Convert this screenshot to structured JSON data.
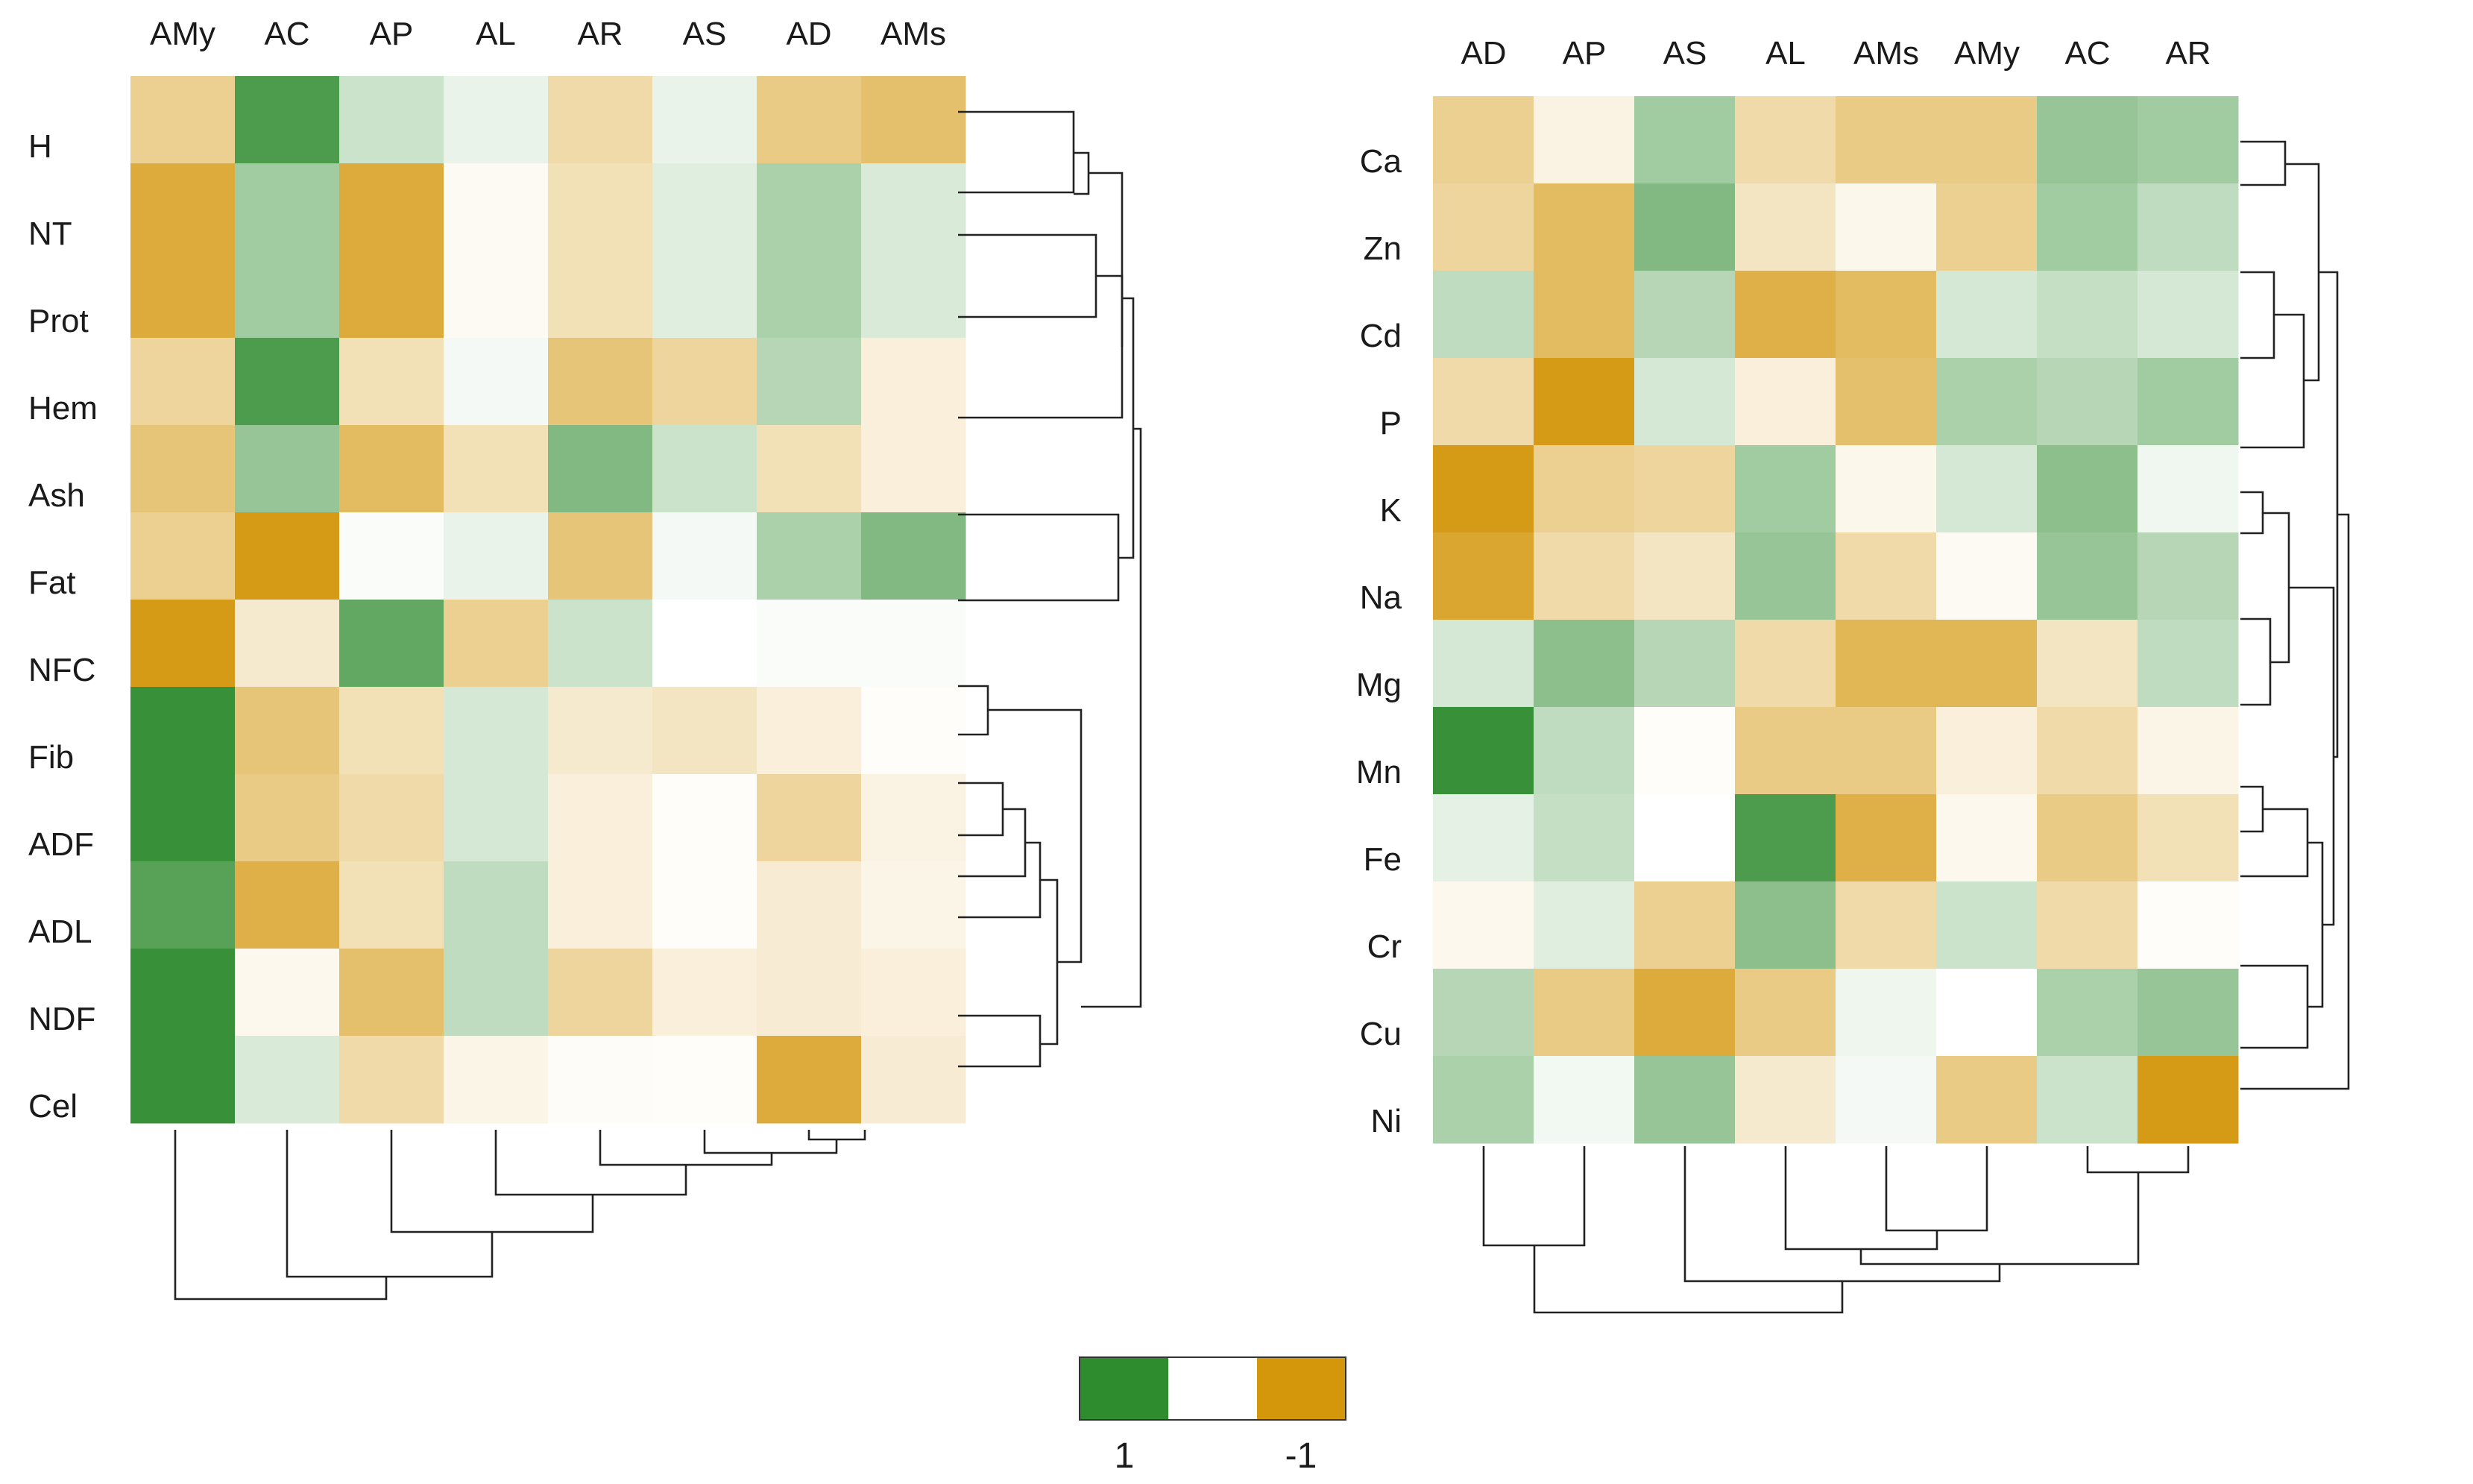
{
  "colors": {
    "positive": "#2e8b2e",
    "neutral": "#ffffff",
    "negative": "#d4960a",
    "line": "#222222",
    "text": "#1a1a1a"
  },
  "chart_data": [
    {
      "type": "heatmap",
      "title": "",
      "columns": [
        "AMy",
        "AC",
        "AP",
        "AL",
        "AR",
        "AS",
        "AD",
        "AMs"
      ],
      "rows": [
        "H",
        "NT",
        "Prot",
        "Hem",
        "Ash",
        "Fat",
        "NFC",
        "Fib",
        "ADF",
        "ADL",
        "NDF",
        "Cel"
      ],
      "value_range": [
        -1,
        1
      ],
      "values": [
        [
          -0.45,
          0.85,
          0.25,
          0.1,
          -0.35,
          0.1,
          -0.5,
          -0.6
        ],
        [
          -0.8,
          0.45,
          -0.8,
          -0.05,
          -0.3,
          0.15,
          0.4,
          0.18
        ],
        [
          -0.8,
          0.45,
          -0.8,
          -0.05,
          -0.3,
          0.15,
          0.4,
          0.18
        ],
        [
          -0.4,
          0.85,
          -0.3,
          0.05,
          -0.55,
          -0.4,
          0.35,
          -0.15
        ],
        [
          -0.55,
          0.5,
          -0.65,
          -0.3,
          0.6,
          0.25,
          -0.3,
          -0.15
        ],
        [
          -0.45,
          -0.95,
          0.03,
          0.1,
          -0.55,
          0.05,
          0.4,
          0.6
        ],
        [
          -0.95,
          -0.2,
          0.75,
          -0.45,
          0.25,
          0.0,
          0.03,
          0.03
        ],
        [
          0.95,
          -0.55,
          -0.3,
          0.2,
          -0.2,
          -0.25,
          -0.15,
          -0.02
        ],
        [
          0.95,
          -0.5,
          -0.35,
          0.2,
          -0.15,
          -0.02,
          -0.4,
          -0.12
        ],
        [
          0.8,
          -0.75,
          -0.3,
          0.3,
          -0.15,
          -0.02,
          -0.18,
          -0.1
        ],
        [
          0.95,
          -0.07,
          -0.6,
          0.3,
          -0.4,
          -0.15,
          -0.18,
          -0.15
        ],
        [
          0.95,
          0.18,
          -0.35,
          -0.1,
          -0.03,
          -0.02,
          -0.8,
          -0.18
        ]
      ]
    },
    {
      "type": "heatmap",
      "title": "",
      "columns": [
        "AD",
        "AP",
        "AS",
        "AL",
        "AMs",
        "AMy",
        "AC",
        "AR"
      ],
      "rows": [
        "Ca",
        "Zn",
        "Cd",
        "P",
        "K",
        "Na",
        "Mg",
        "Mn",
        "Fe",
        "Cr",
        "Cu",
        "Ni"
      ],
      "value_range": [
        -1,
        1
      ],
      "values": [
        [
          -0.45,
          -0.12,
          0.45,
          -0.35,
          -0.5,
          -0.5,
          0.5,
          0.45
        ],
        [
          -0.4,
          -0.65,
          0.6,
          -0.25,
          -0.08,
          -0.45,
          0.45,
          0.3
        ],
        [
          0.3,
          -0.65,
          0.35,
          -0.75,
          -0.65,
          0.2,
          0.28,
          0.2
        ],
        [
          -0.35,
          -0.95,
          0.2,
          -0.15,
          -0.6,
          0.4,
          0.35,
          0.45
        ],
        [
          -0.95,
          -0.45,
          -0.4,
          0.45,
          -0.08,
          0.2,
          0.55,
          0.07
        ],
        [
          -0.85,
          -0.35,
          -0.25,
          0.5,
          -0.35,
          -0.05,
          0.5,
          0.35
        ],
        [
          0.2,
          0.55,
          0.35,
          -0.35,
          -0.7,
          -0.7,
          -0.25,
          0.3
        ],
        [
          0.95,
          0.3,
          -0.02,
          -0.5,
          -0.5,
          -0.15,
          -0.35,
          -0.1
        ],
        [
          0.12,
          0.28,
          0.0,
          0.85,
          -0.75,
          -0.07,
          -0.5,
          -0.3
        ],
        [
          -0.07,
          0.15,
          -0.45,
          0.55,
          -0.35,
          0.25,
          -0.35,
          -0.02
        ],
        [
          0.35,
          -0.5,
          -0.8,
          -0.5,
          0.08,
          0.0,
          0.4,
          0.5
        ],
        [
          0.4,
          0.06,
          0.5,
          -0.2,
          0.05,
          -0.5,
          0.25,
          -0.95
        ]
      ]
    }
  ],
  "colorbar": {
    "positive_label": "1",
    "negative_label": "-1"
  }
}
